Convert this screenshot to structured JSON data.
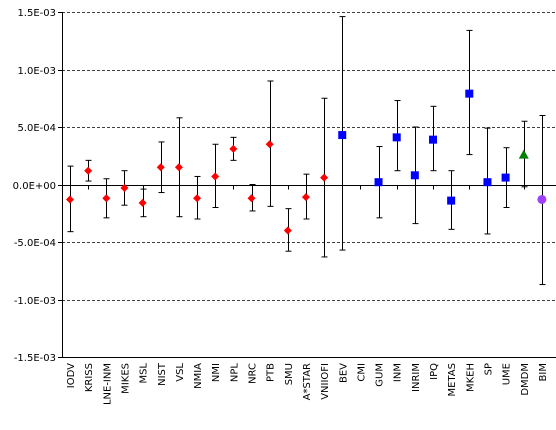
{
  "chart_data": {
    "type": "scatter",
    "title": "",
    "xlabel": "",
    "ylabel": "",
    "ylim": [
      -0.0015,
      0.0015
    ],
    "yticks": [
      {
        "value": 0.0015,
        "label": "1.5E-03"
      },
      {
        "value": 0.001,
        "label": "1.0E-03"
      },
      {
        "value": 0.0005,
        "label": "5.0E-04"
      },
      {
        "value": 0,
        "label": "0.0E+00"
      },
      {
        "value": -0.0005,
        "label": "-5.0E-04"
      },
      {
        "value": -0.001,
        "label": "-1.0E-03"
      },
      {
        "value": -0.0015,
        "label": "-1.5E-03"
      }
    ],
    "grid": "horizontal dashed",
    "legend": "none",
    "categories": [
      "IODV",
      "KRISS",
      "LNE-INM",
      "MIKES",
      "MSL",
      "NIST",
      "VSL",
      "NMIA",
      "NMI",
      "NPL",
      "NRC",
      "PTB",
      "SMU",
      "A*STAR",
      "VNIIOFI",
      "BEV",
      "CMI",
      "GUM",
      "INM",
      "INRIM",
      "IPQ",
      "METAS",
      "MKEH",
      "SP",
      "UME",
      "DMDM",
      "BIM"
    ],
    "points": [
      {
        "x": "IODV",
        "y": -0.00013,
        "lo": -0.00041,
        "hi": 0.00016,
        "marker": "diamond",
        "color": "#ff0000"
      },
      {
        "x": "KRISS",
        "y": 0.00012,
        "lo": 3e-05,
        "hi": 0.00021,
        "marker": "diamond",
        "color": "#ff0000"
      },
      {
        "x": "LNE-INM",
        "y": -0.00012,
        "lo": -0.00029,
        "hi": 5e-05,
        "marker": "diamond",
        "color": "#ff0000"
      },
      {
        "x": "MIKES",
        "y": -3e-05,
        "lo": -0.00018,
        "hi": 0.00012,
        "marker": "diamond",
        "color": "#ff0000"
      },
      {
        "x": "MSL",
        "y": -0.00016,
        "lo": -0.00028,
        "hi": -4e-05,
        "marker": "diamond",
        "color": "#ff0000"
      },
      {
        "x": "NIST",
        "y": 0.00015,
        "lo": -7e-05,
        "hi": 0.00037,
        "marker": "diamond",
        "color": "#ff0000"
      },
      {
        "x": "VSL",
        "y": 0.00015,
        "lo": -0.00028,
        "hi": 0.00058,
        "marker": "diamond",
        "color": "#ff0000"
      },
      {
        "x": "NMIA",
        "y": -0.00012,
        "lo": -0.0003,
        "hi": 7e-05,
        "marker": "diamond",
        "color": "#ff0000"
      },
      {
        "x": "NMI",
        "y": 7e-05,
        "lo": -0.0002,
        "hi": 0.00035,
        "marker": "diamond",
        "color": "#ff0000"
      },
      {
        "x": "NPL",
        "y": 0.00031,
        "lo": 0.00021,
        "hi": 0.00041,
        "marker": "diamond",
        "color": "#ff0000"
      },
      {
        "x": "NRC",
        "y": -0.00012,
        "lo": -0.00023,
        "hi": 0.0,
        "marker": "diamond",
        "color": "#ff0000"
      },
      {
        "x": "PTB",
        "y": 0.00035,
        "lo": -0.00019,
        "hi": 0.0009,
        "marker": "diamond",
        "color": "#ff0000"
      },
      {
        "x": "SMU",
        "y": -0.0004,
        "lo": -0.00058,
        "hi": -0.00021,
        "marker": "diamond",
        "color": "#ff0000"
      },
      {
        "x": "A*STAR",
        "y": -0.00011,
        "lo": -0.0003,
        "hi": 9e-05,
        "marker": "diamond",
        "color": "#ff0000"
      },
      {
        "x": "VNIIOFI",
        "y": 6e-05,
        "lo": -0.00063,
        "hi": 0.00075,
        "marker": "diamond",
        "color": "#ff0000"
      },
      {
        "x": "BEV",
        "y": 0.00043,
        "lo": -0.00057,
        "hi": 0.00146,
        "marker": "square",
        "color": "#0000ff"
      },
      {
        "x": "GUM",
        "y": 2e-05,
        "lo": -0.00029,
        "hi": 0.00033,
        "marker": "square",
        "color": "#0000ff"
      },
      {
        "x": "INM",
        "y": 0.00041,
        "lo": 0.00012,
        "hi": 0.00073,
        "marker": "square",
        "color": "#0000ff"
      },
      {
        "x": "INRIM",
        "y": 8e-05,
        "lo": -0.00034,
        "hi": 0.0005,
        "marker": "square",
        "color": "#0000ff"
      },
      {
        "x": "IPQ",
        "y": 0.00039,
        "lo": 0.00012,
        "hi": 0.00068,
        "marker": "square",
        "color": "#0000ff"
      },
      {
        "x": "METAS",
        "y": -0.00014,
        "lo": -0.00039,
        "hi": 0.00012,
        "marker": "square",
        "color": "#0000ff"
      },
      {
        "x": "MKEH",
        "y": 0.00079,
        "lo": 0.00026,
        "hi": 0.00134,
        "marker": "square",
        "color": "#0000ff"
      },
      {
        "x": "SP",
        "y": 2e-05,
        "lo": -0.00043,
        "hi": 0.00049,
        "marker": "square",
        "color": "#0000ff"
      },
      {
        "x": "UME",
        "y": 6e-05,
        "lo": -0.0002,
        "hi": 0.00032,
        "marker": "square",
        "color": "#0000ff"
      },
      {
        "x": "DMDM",
        "y": 0.00026,
        "lo": -2e-05,
        "hi": 0.00055,
        "marker": "triangle",
        "color": "#008000"
      },
      {
        "x": "BIM",
        "y": -0.00013,
        "lo": -0.00087,
        "hi": 0.0006,
        "marker": "circle",
        "color": "#a040ff"
      }
    ]
  }
}
